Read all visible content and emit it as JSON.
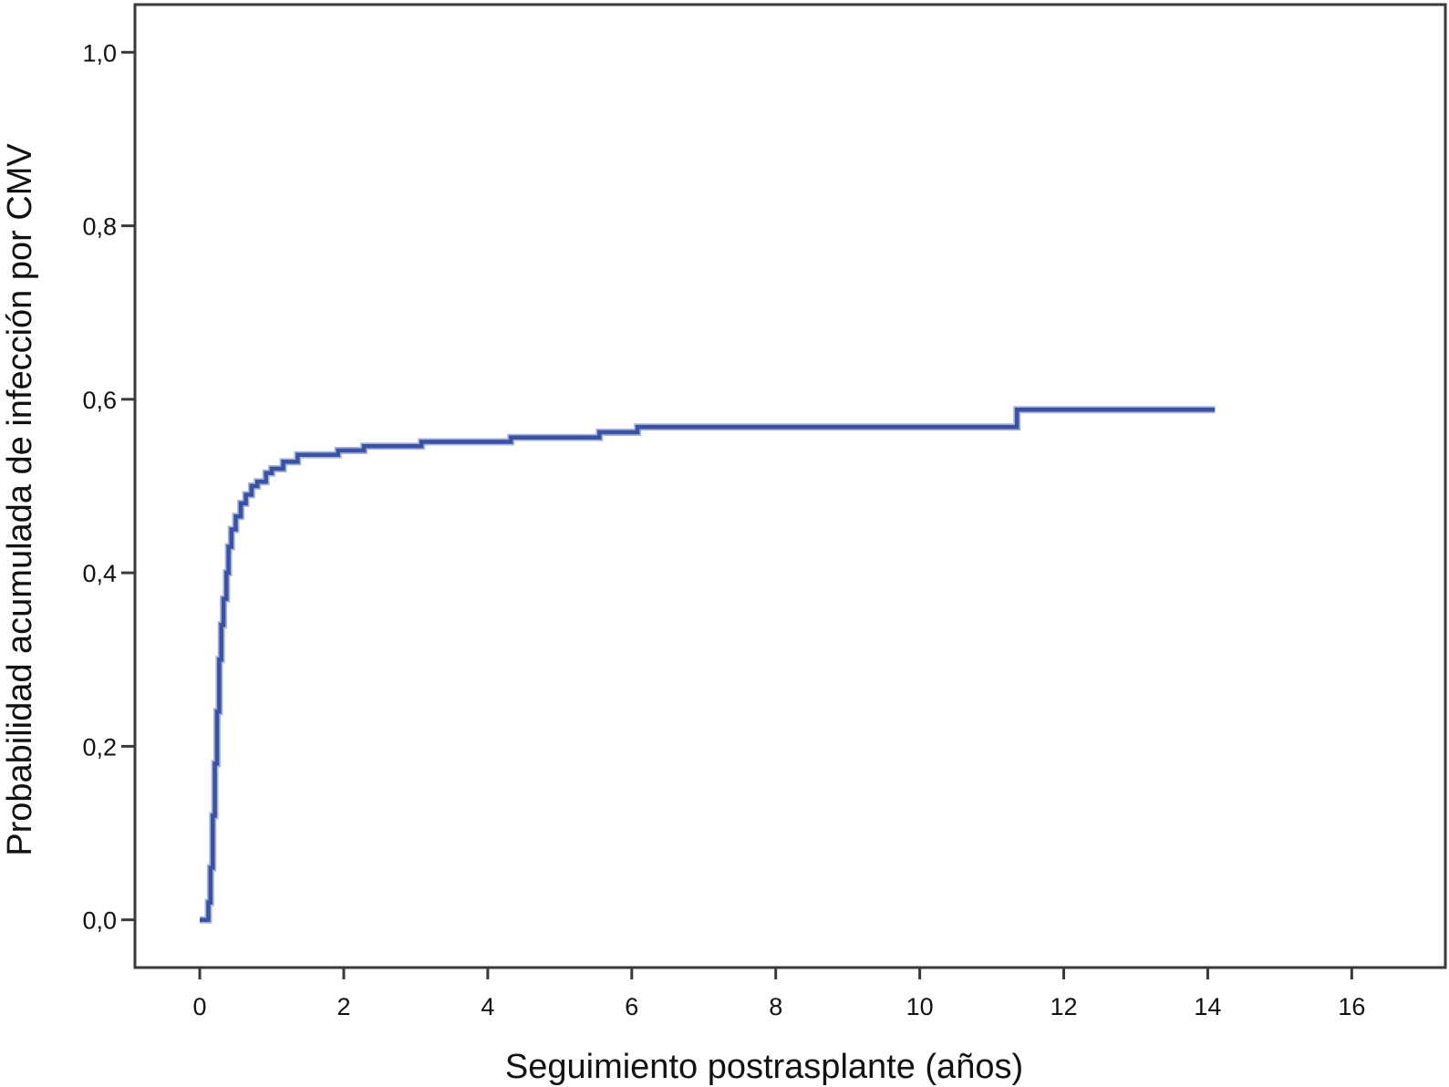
{
  "chart_data": {
    "type": "line",
    "subtype": "step",
    "title": "",
    "xlabel": "Seguimiento postrasplante (años)",
    "ylabel": "Probabilidad acumulada de infección por CMV",
    "xlim": [
      -0.9,
      17.3
    ],
    "ylim": [
      -0.055,
      1.055
    ],
    "x_ticks": [
      0,
      2,
      4,
      6,
      8,
      10,
      12,
      14,
      16
    ],
    "x_tick_labels": [
      "0",
      "2",
      "4",
      "6",
      "8",
      "10",
      "12",
      "14",
      "16"
    ],
    "y_ticks": [
      0.0,
      0.2,
      0.4,
      0.6,
      0.8,
      1.0
    ],
    "y_tick_labels": [
      "0,0",
      "0,2",
      "0,4",
      "0,6",
      "0,8",
      "1,0"
    ],
    "grid": false,
    "legend": "none",
    "series": [
      {
        "color": "#3a51a4",
        "points": [
          [
            0.0,
            0.0
          ],
          [
            0.12,
            0.0
          ],
          [
            0.12,
            0.02
          ],
          [
            0.15,
            0.02
          ],
          [
            0.15,
            0.06
          ],
          [
            0.18,
            0.06
          ],
          [
            0.18,
            0.12
          ],
          [
            0.21,
            0.12
          ],
          [
            0.21,
            0.18
          ],
          [
            0.24,
            0.18
          ],
          [
            0.24,
            0.24
          ],
          [
            0.27,
            0.24
          ],
          [
            0.27,
            0.3
          ],
          [
            0.3,
            0.3
          ],
          [
            0.3,
            0.34
          ],
          [
            0.33,
            0.34
          ],
          [
            0.33,
            0.37
          ],
          [
            0.37,
            0.37
          ],
          [
            0.37,
            0.4
          ],
          [
            0.4,
            0.4
          ],
          [
            0.4,
            0.43
          ],
          [
            0.44,
            0.43
          ],
          [
            0.44,
            0.45
          ],
          [
            0.5,
            0.45
          ],
          [
            0.5,
            0.465
          ],
          [
            0.57,
            0.465
          ],
          [
            0.57,
            0.48
          ],
          [
            0.64,
            0.48
          ],
          [
            0.64,
            0.49
          ],
          [
            0.72,
            0.49
          ],
          [
            0.72,
            0.5
          ],
          [
            0.8,
            0.5
          ],
          [
            0.8,
            0.505
          ],
          [
            0.92,
            0.505
          ],
          [
            0.92,
            0.515
          ],
          [
            1.0,
            0.515
          ],
          [
            1.0,
            0.52
          ],
          [
            1.16,
            0.52
          ],
          [
            1.16,
            0.528
          ],
          [
            1.36,
            0.528
          ],
          [
            1.36,
            0.536
          ],
          [
            1.92,
            0.536
          ],
          [
            1.92,
            0.541
          ],
          [
            2.28,
            0.541
          ],
          [
            2.28,
            0.546
          ],
          [
            3.08,
            0.546
          ],
          [
            3.08,
            0.551
          ],
          [
            4.32,
            0.551
          ],
          [
            4.32,
            0.556
          ],
          [
            5.55,
            0.556
          ],
          [
            5.55,
            0.562
          ],
          [
            6.08,
            0.562
          ],
          [
            6.08,
            0.568
          ],
          [
            11.35,
            0.568
          ],
          [
            11.35,
            0.588
          ],
          [
            14.1,
            0.588
          ]
        ]
      }
    ]
  }
}
